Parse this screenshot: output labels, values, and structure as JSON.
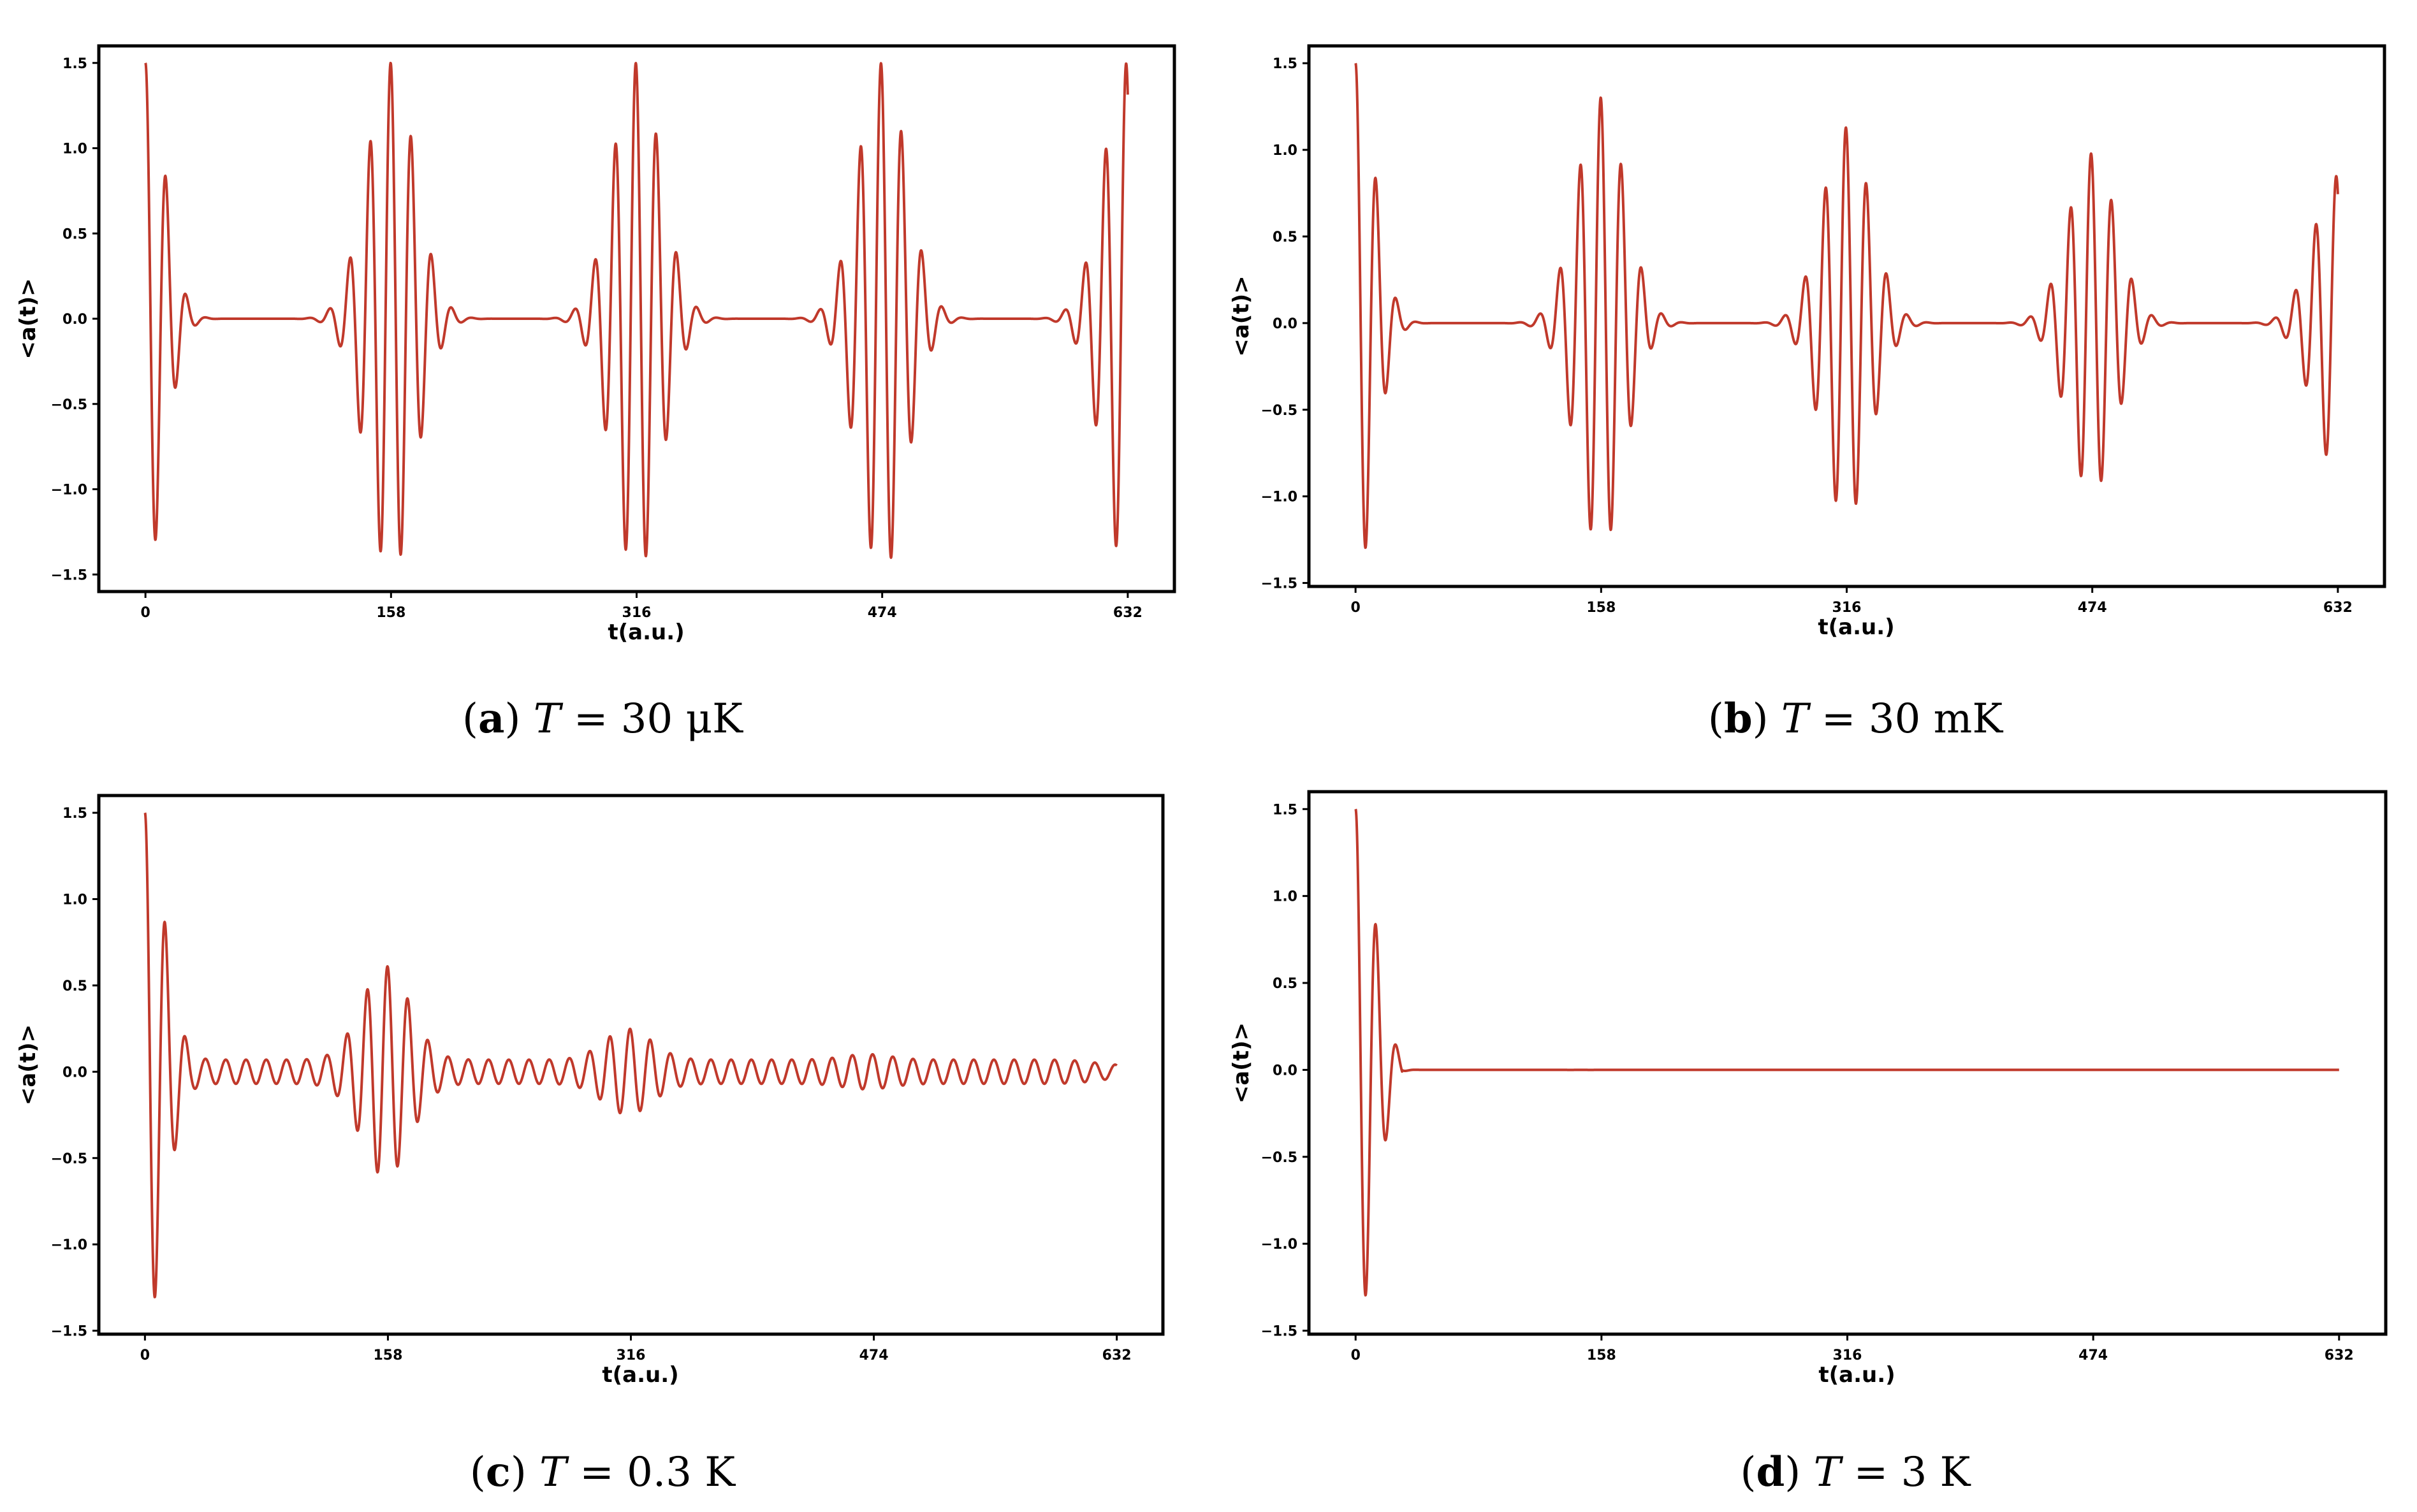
{
  "line_color": "#c0392b",
  "chart_data": [
    {
      "id": "a",
      "type": "line",
      "caption": {
        "letter": "a",
        "variable": "T",
        "value": "30 μK"
      },
      "xlabel": "t(a.u.)",
      "ylabel": "<a(t)>",
      "xticks": [
        "0",
        "158",
        "316",
        "474",
        "632"
      ],
      "yticks": [
        "1.5",
        "1.0",
        "0.5",
        "0.0",
        "−0.5",
        "−1.0",
        "−1.5"
      ],
      "xlim": [
        -30,
        662
      ],
      "ylim": [
        -1.6,
        1.6
      ],
      "signal": {
        "amplitude": 1.5,
        "carrier_freq": 0.478,
        "beat_period": 158,
        "decay_rate": 0.07,
        "x_end": 632,
        "pulse_decay": 0,
        "floor": 0
      },
      "grid": false
    },
    {
      "id": "b",
      "type": "line",
      "caption": {
        "letter": "b",
        "variable": "T",
        "value": "30 mK"
      },
      "xlabel": "t(a.u.)",
      "ylabel": "<a(t)>",
      "xticks": [
        "0",
        "158",
        "316",
        "474",
        "632"
      ],
      "yticks": [
        "1.5",
        "1.0",
        "0.5",
        "0.0",
        "−0.5",
        "−1.0",
        "−1.5"
      ],
      "xlim": [
        -30,
        662
      ],
      "ylim": [
        -1.52,
        1.6
      ],
      "signal": {
        "amplitude": 1.5,
        "carrier_freq": 0.478,
        "beat_period": 158,
        "decay_rate": 0.07,
        "x_end": 632,
        "pulse_decay": 0.0009,
        "floor": 0
      },
      "grid": false
    },
    {
      "id": "c",
      "type": "line",
      "caption": {
        "letter": "c",
        "variable": "T",
        "value": "0.3 K"
      },
      "xlabel": "t(a.u.)",
      "ylabel": "<a(t)>",
      "xticks": [
        "0",
        "158",
        "316",
        "474",
        "632"
      ],
      "yticks": [
        "1.5",
        "1.0",
        "0.5",
        "0.0",
        "−0.5",
        "−1.0",
        "−1.5"
      ],
      "xlim": [
        -30,
        662
      ],
      "ylim": [
        -1.52,
        1.6
      ],
      "signal": {
        "amplitude": 1.5,
        "carrier_freq": 0.478,
        "beat_period": 158,
        "decay_rate": 0.07,
        "x_end": 632,
        "pulse_decay": 0.0057,
        "floor": 0.07
      },
      "grid": false
    },
    {
      "id": "d",
      "type": "line",
      "caption": {
        "letter": "d",
        "variable": "T",
        "value": "3 K"
      },
      "xlabel": "t(a.u.)",
      "ylabel": "<a(t)>",
      "xticks": [
        "0",
        "158",
        "316",
        "474",
        "632"
      ],
      "yticks": [
        "1.5",
        "1.0",
        "0.5",
        "0.0",
        "−0.5",
        "−1.0",
        "−1.5"
      ],
      "xlim": [
        -30,
        662
      ],
      "ylim": [
        -1.52,
        1.6
      ],
      "signal": {
        "amplitude": 1.5,
        "carrier_freq": 0.478,
        "beat_period": 158,
        "decay_rate": 0.07,
        "x_end": 632,
        "pulse_decay": 0.06,
        "floor": 0
      },
      "grid": false
    }
  ]
}
